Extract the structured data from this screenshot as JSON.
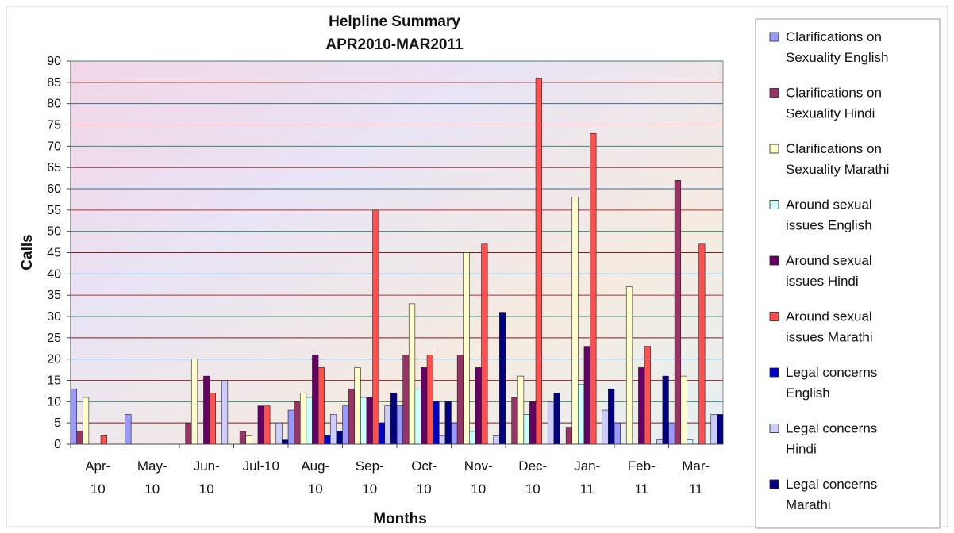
{
  "chart_data": {
    "type": "bar",
    "title": "Helpline Summary",
    "subtitle": "APR2010-MAR2011",
    "xlabel": "Months",
    "ylabel": "Calls",
    "ylim": [
      0,
      90
    ],
    "ytick_step": 5,
    "grid": true,
    "legend_position": "right",
    "categories": [
      "Apr-10",
      "May-10",
      "Jun-10",
      "Jul-10",
      "Aug-10",
      "Sep-10",
      "Oct-10",
      "Nov-10",
      "Dec-10",
      "Jan-11",
      "Feb-11",
      "Mar-11"
    ],
    "category_labels": [
      [
        "Apr-",
        "10"
      ],
      [
        "May-",
        "10"
      ],
      [
        "Jun-",
        "10"
      ],
      [
        "Jul-10"
      ],
      [
        "Aug-",
        "10"
      ],
      [
        "Sep-",
        "10"
      ],
      [
        "Oct-",
        "10"
      ],
      [
        "Nov-",
        "10"
      ],
      [
        "Dec-",
        "10"
      ],
      [
        "Jan-",
        "11"
      ],
      [
        "Feb-",
        "11"
      ],
      [
        "Mar-",
        "11"
      ]
    ],
    "series": [
      {
        "name": "Clarifications on Sexuality English",
        "legend_lines": [
          "Clarifications on",
          "Sexuality English"
        ],
        "color": "#9999ff",
        "values": [
          13,
          7,
          0,
          0,
          8,
          9,
          9,
          5,
          0,
          0,
          5,
          5
        ]
      },
      {
        "name": "Clarifications on Sexuality Hindi",
        "legend_lines": [
          "Clarifications on",
          "Sexuality Hindi"
        ],
        "color": "#993366",
        "values": [
          3,
          0,
          5,
          3,
          10,
          13,
          21,
          21,
          11,
          4,
          0,
          62
        ]
      },
      {
        "name": "Clarifications on Sexuality Marathi",
        "legend_lines": [
          "Clarifications on",
          "Sexuality Marathi"
        ],
        "color": "#ffffcc",
        "values": [
          11,
          0,
          20,
          2,
          12,
          18,
          33,
          45,
          16,
          58,
          37,
          16
        ]
      },
      {
        "name": "Around sexual issues English",
        "legend_lines": [
          "Around sexual",
          "issues English"
        ],
        "color": "#ccffff",
        "values": [
          0,
          0,
          0,
          0,
          11,
          11,
          13,
          3,
          7,
          14,
          0,
          1
        ]
      },
      {
        "name": "Around sexual issues Hindi",
        "legend_lines": [
          "Around sexual",
          "issues Hindi"
        ],
        "color": "#660066",
        "values": [
          0,
          0,
          16,
          9,
          21,
          11,
          18,
          18,
          10,
          23,
          18,
          0
        ]
      },
      {
        "name": "Around sexual issues Marathi",
        "legend_lines": [
          "Around sexual",
          "issues Marathi"
        ],
        "color": "#ff5050",
        "values": [
          2,
          0,
          12,
          9,
          18,
          55,
          21,
          47,
          86,
          73,
          23,
          47
        ]
      },
      {
        "name": "Legal concerns English",
        "legend_lines": [
          "Legal concerns",
          "English"
        ],
        "color": "#0000cc",
        "values": [
          0,
          0,
          0,
          0,
          2,
          5,
          10,
          0,
          0,
          0,
          0,
          0
        ]
      },
      {
        "name": "Legal concerns Hindi",
        "legend_lines": [
          "Legal concerns",
          "Hindi"
        ],
        "color": "#ccccff",
        "values": [
          0,
          0,
          15,
          5,
          7,
          9,
          2,
          2,
          10,
          8,
          1,
          7
        ]
      },
      {
        "name": "Legal concerns Marathi",
        "legend_lines": [
          "Legal concerns",
          "Marathi"
        ],
        "color": "#000080",
        "values": [
          0,
          0,
          0,
          1,
          3,
          12,
          10,
          31,
          12,
          13,
          16,
          7
        ]
      }
    ]
  }
}
